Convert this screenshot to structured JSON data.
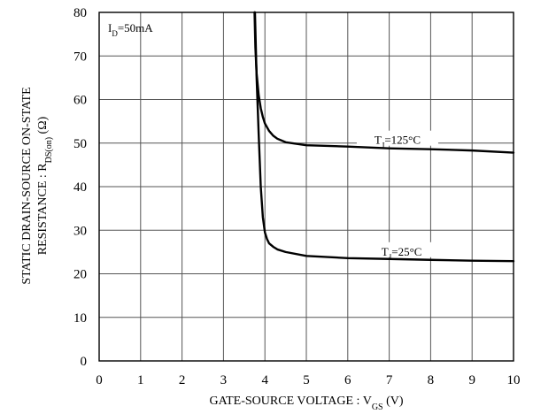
{
  "chart_data": {
    "type": "line",
    "title": "",
    "xlabel": {
      "main": "GATE-SOURCE VOLTAGE : V",
      "sub": "GS",
      "unit": " (V)"
    },
    "ylabel": {
      "line1": "STATIC DRAIN-SOURCE ON-STATE",
      "line2_main": "RESISTANCE : R",
      "line2_sub": "DS(on)",
      "line2_unit": " (Ω)"
    },
    "xlim": [
      0,
      10
    ],
    "ylim": [
      0,
      80
    ],
    "xticks": [
      "0",
      "1",
      "2",
      "3",
      "4",
      "5",
      "6",
      "7",
      "8",
      "9",
      "10"
    ],
    "yticks": [
      "0",
      "10",
      "20",
      "30",
      "40",
      "50",
      "60",
      "70",
      "80"
    ],
    "grid": true,
    "condition": {
      "main": "I",
      "sub": "D",
      "rest": "=50mA"
    },
    "series": [
      {
        "name": "TJ=125°C",
        "label_main": "T",
        "label_sub": "J",
        "label_rest": "=125°C",
        "color": "#000000",
        "x": [
          3.75,
          3.77,
          3.8,
          3.85,
          3.9,
          3.95,
          4.0,
          4.1,
          4.2,
          4.3,
          4.5,
          5.0,
          6.0,
          6.5,
          7.0,
          8.0,
          9.0,
          10.0
        ],
        "y": [
          80,
          72,
          66,
          61,
          58,
          56,
          54.5,
          52.8,
          51.7,
          51,
          50.2,
          49.5,
          49.2,
          49.0,
          48.8,
          48.6,
          48.3,
          47.8
        ]
      },
      {
        "name": "TJ=25°C",
        "label_main": "T",
        "label_sub": "J",
        "label_rest": "=25°C",
        "color": "#000000",
        "x": [
          3.76,
          3.8,
          3.85,
          3.9,
          3.95,
          4.0,
          4.05,
          4.1,
          4.2,
          4.3,
          4.5,
          5.0,
          6.0,
          7.0,
          8.0,
          9.0,
          10.0
        ],
        "y": [
          80,
          65,
          52,
          40,
          33,
          29.5,
          28,
          27,
          26.2,
          25.6,
          25,
          24.1,
          23.6,
          23.4,
          23.2,
          23.0,
          22.9
        ]
      }
    ]
  }
}
